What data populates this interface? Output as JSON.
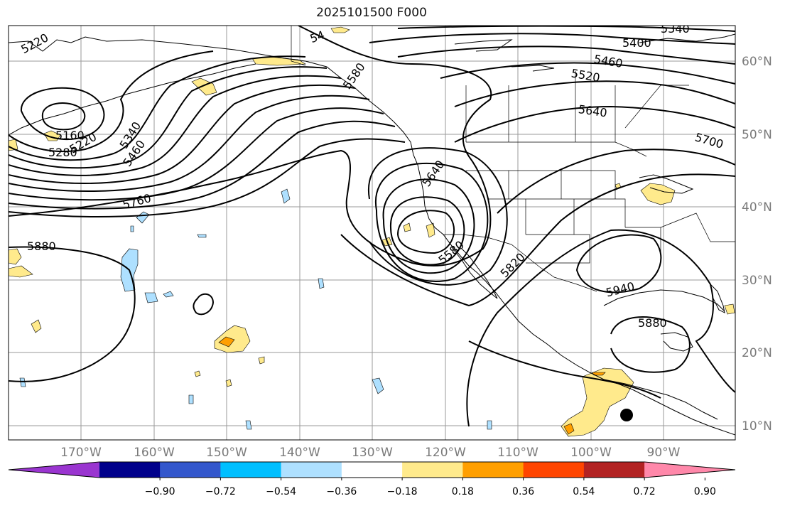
{
  "title": "2025101500 F000",
  "map": {
    "lat_labels": [
      "60°N",
      "50°N",
      "40°N",
      "30°N",
      "20°N",
      "10°N"
    ],
    "lon_labels": [
      "170°W",
      "160°W",
      "150°W",
      "140°W",
      "130°W",
      "120°W",
      "110°W",
      "100°W",
      "90°W"
    ],
    "contour_labels": [
      "5220",
      "5160",
      "5220",
      "5280",
      "5340",
      "5460",
      "5760",
      "5880",
      "54",
      "5580",
      "5400",
      "5340",
      "5460",
      "5520",
      "5640",
      "5700",
      "5640",
      "5580",
      "5820",
      "5940",
      "5880"
    ],
    "colors": {
      "contour": "#000000",
      "grid": "#9a9a9a",
      "coast": "#000000",
      "pos_light": "#ffea8c",
      "pos_mid": "#ff9f00",
      "neg_light": "#aee0ff",
      "marker": "#000000"
    }
  },
  "colorbar": {
    "ticks": [
      "−0.90",
      "−0.72",
      "−0.54",
      "−0.36",
      "−0.18",
      "0.18",
      "0.36",
      "0.54",
      "0.72",
      "0.90"
    ],
    "colors": [
      "#9a35d0",
      "#00008b",
      "#3357cc",
      "#00bfff",
      "#aee0ff",
      "#ffffff",
      "#ffea8c",
      "#ff9f00",
      "#ff4500",
      "#b22222",
      "#ff88aa"
    ]
  }
}
